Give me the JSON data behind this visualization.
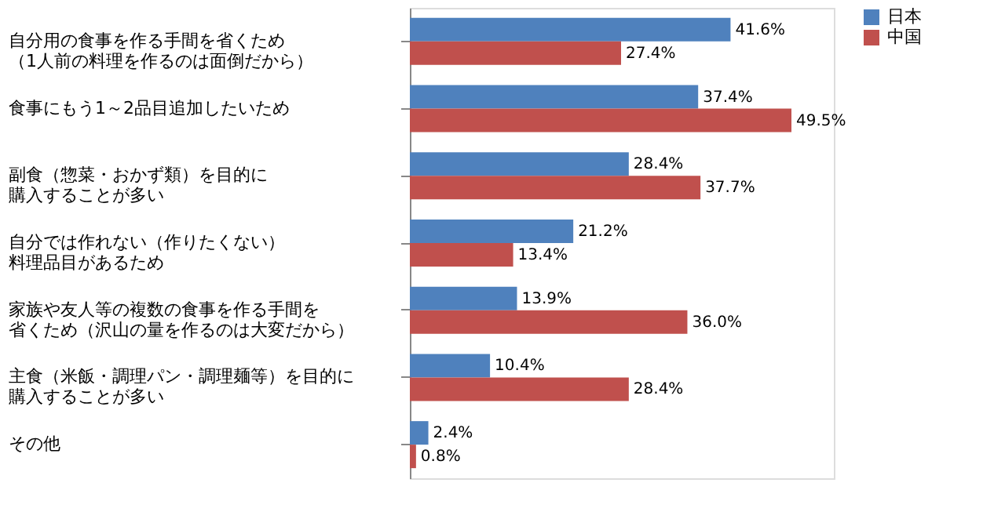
{
  "chart_data": {
    "type": "bar",
    "orientation": "horizontal",
    "categories": [
      "自分用の食事を作る手間を省くため（1人前の料理を作るのは面倒だから）",
      "食事にもう1～2品目追加したいため",
      "副食（惣菜・おかず類）を目的に購入することが多い",
      "自分では作れない（作りたくない）料理品目があるため",
      "家族や友人等の複数の食事を作る手間を省くため（沢山の量を作るのは大変だから）",
      "主食（米飯・調理パン・調理麺等）を目的に購入することが多い",
      "その他"
    ],
    "series": [
      {
        "name": "日本",
        "color": "#4f81bd",
        "values": [
          41.6,
          37.4,
          28.4,
          21.2,
          13.9,
          10.4,
          2.4
        ],
        "value_labels": [
          "41.6%",
          "37.4%",
          "28.4%",
          "21.2%",
          "13.9%",
          "10.4%",
          "2.4%"
        ]
      },
      {
        "name": "中国",
        "color": "#c0504d",
        "values": [
          27.4,
          49.5,
          37.7,
          13.4,
          36.0,
          28.4,
          0.8
        ],
        "value_labels": [
          "27.4%",
          "49.5%",
          "37.7%",
          "13.4%",
          "36.0%",
          "28.4%",
          "0.8%"
        ]
      }
    ],
    "xlim": [
      0,
      55
    ],
    "tick_labels": "y",
    "grid": false,
    "legend": "right"
  }
}
